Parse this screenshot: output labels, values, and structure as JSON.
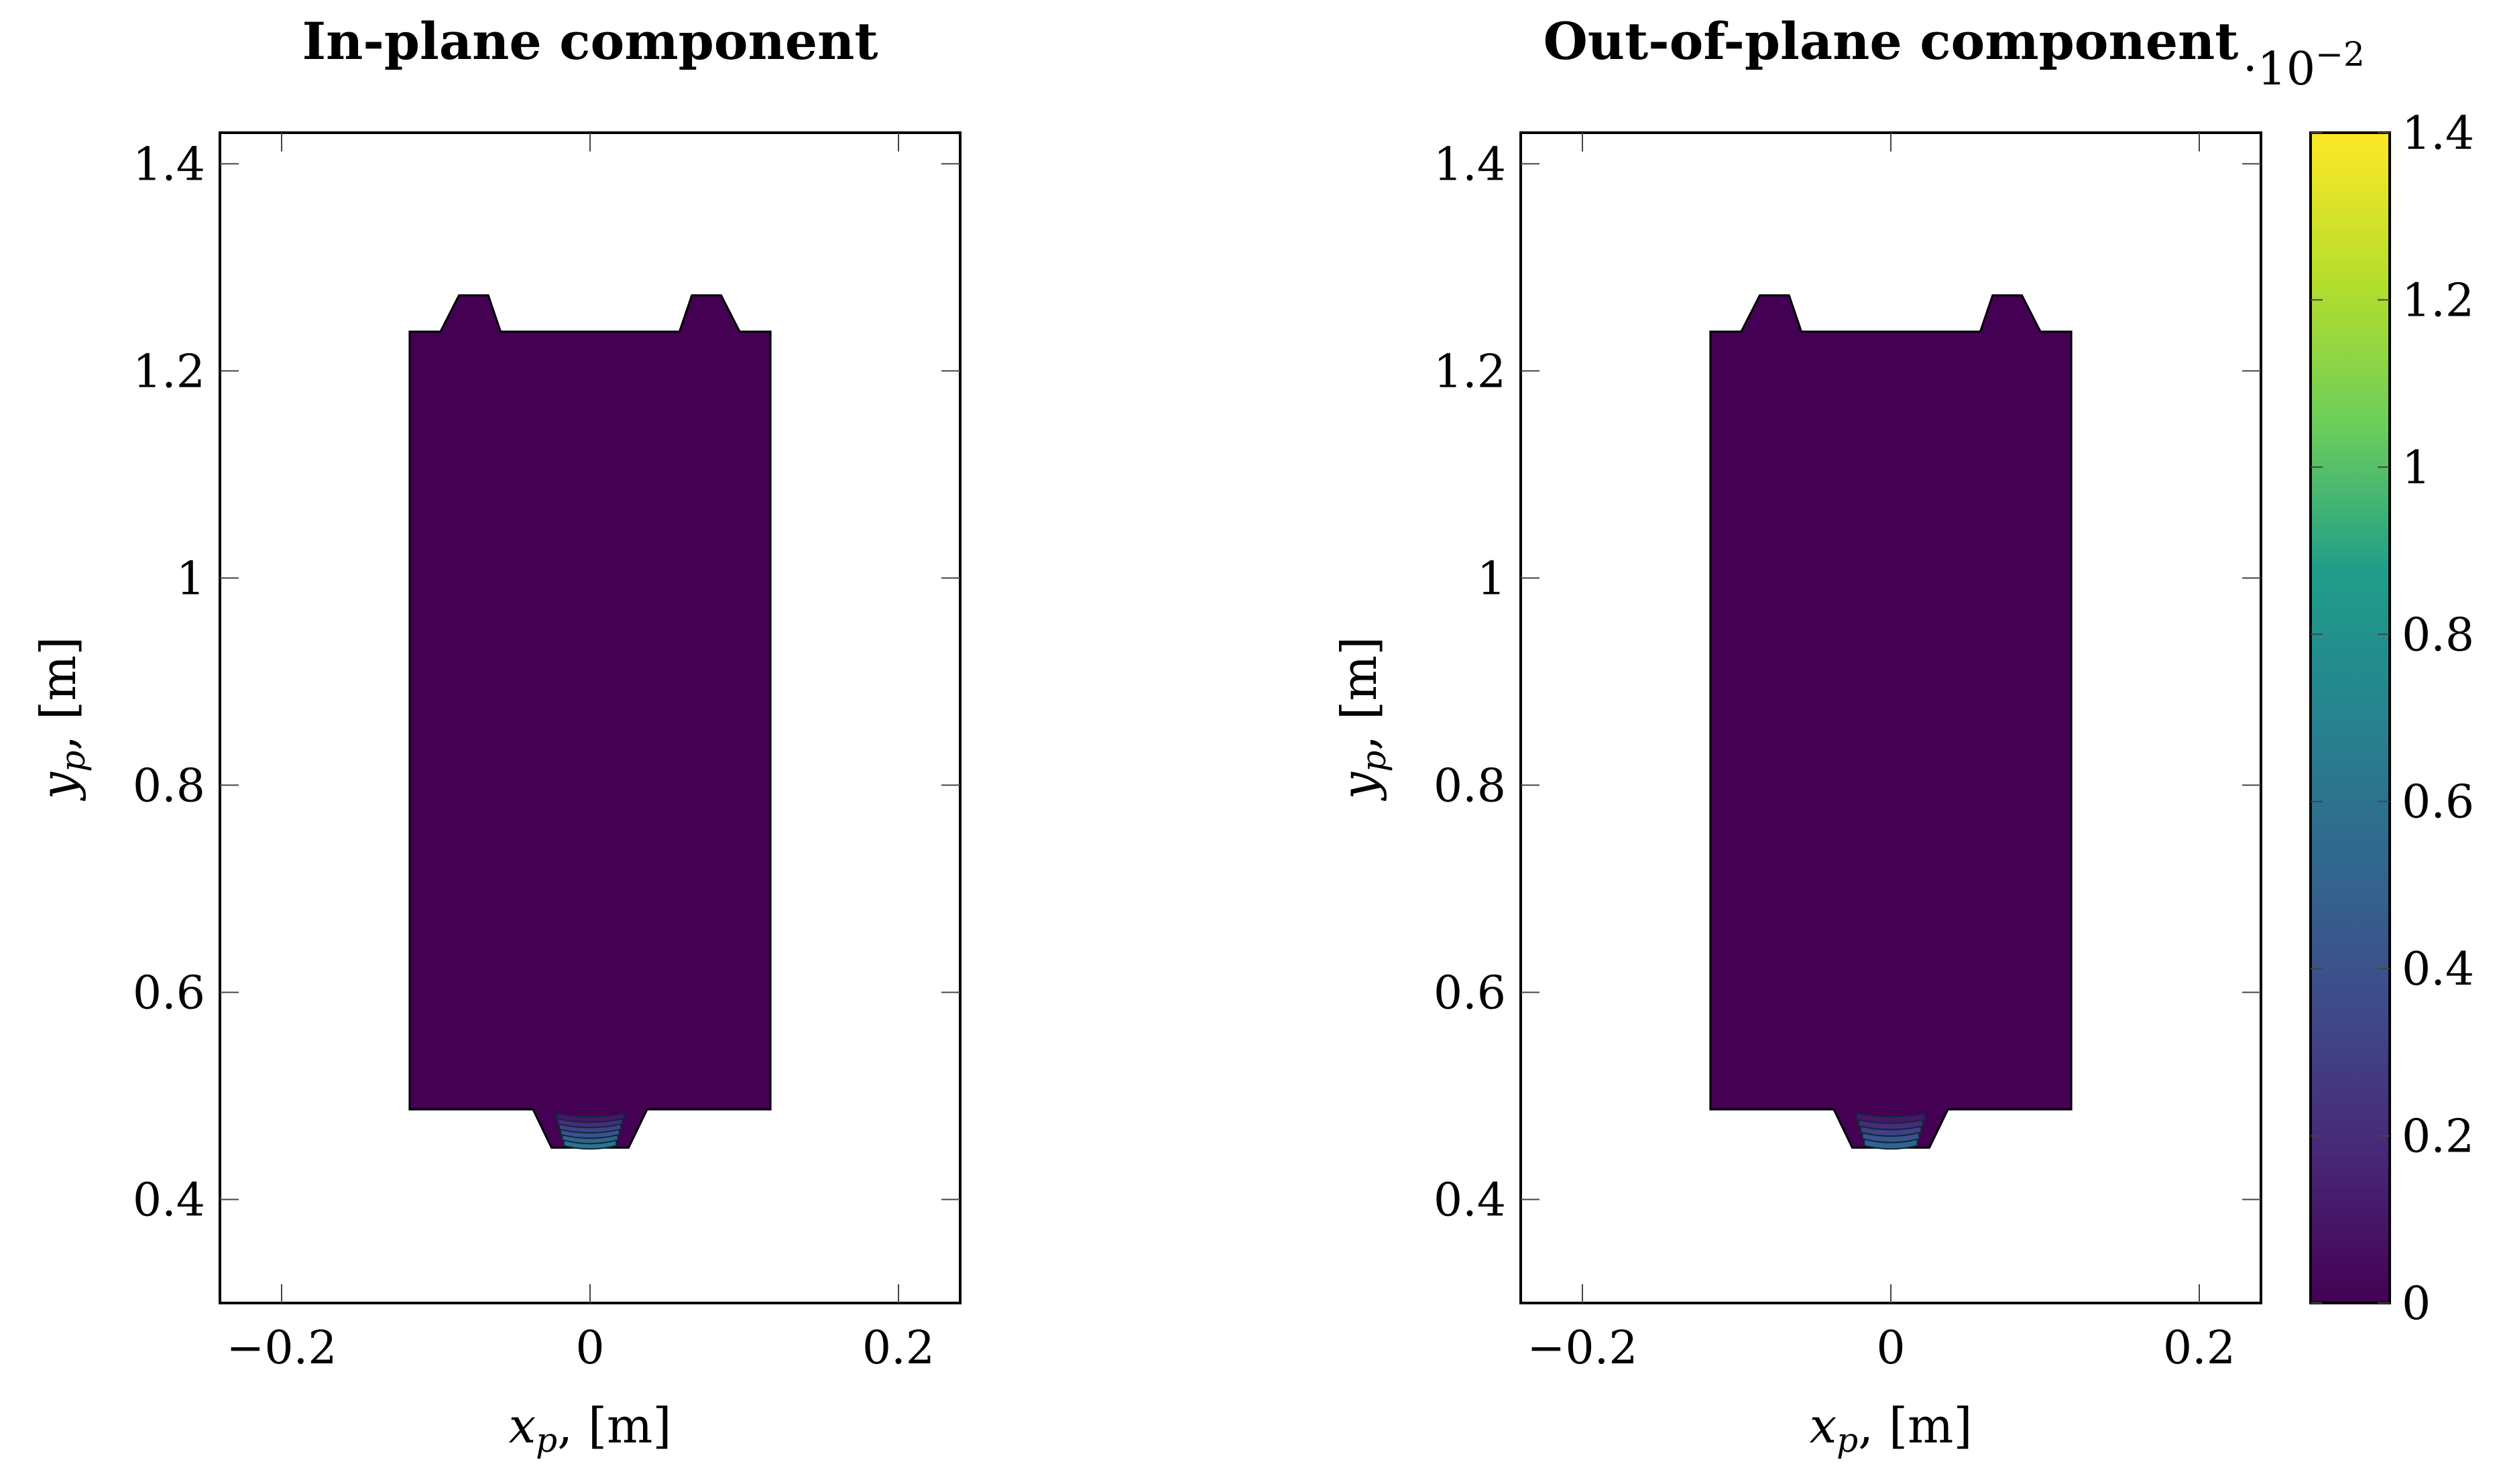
{
  "chart_data": [
    {
      "type": "heatmap",
      "title": "In-plane component",
      "xlabel_var": "x",
      "xlabel_sub": "p",
      "xlabel_unit": ", [m]",
      "ylabel_var": "y",
      "ylabel_sub": "p",
      "ylabel_unit": ", [m]",
      "xlim": [
        -0.24,
        0.24
      ],
      "ylim": [
        0.3,
        1.43
      ],
      "xticks": [
        -0.2,
        0,
        0.2
      ],
      "xtick_labels": [
        "−0.2",
        "0",
        "0.2"
      ],
      "yticks": [
        0.4,
        0.6,
        0.8,
        1.0,
        1.2,
        1.4
      ],
      "ytick_labels": [
        "0.4",
        "0.6",
        "0.8",
        "1",
        "1.2",
        "1.4"
      ],
      "body_outline": [
        [
          -0.117,
          0.487
        ],
        [
          -0.037,
          0.487
        ],
        [
          -0.025,
          0.45
        ],
        [
          0.025,
          0.45
        ],
        [
          0.037,
          0.487
        ],
        [
          0.117,
          0.487
        ],
        [
          0.117,
          1.238
        ],
        [
          0.097,
          1.238
        ],
        [
          0.085,
          1.273
        ],
        [
          0.066,
          1.273
        ],
        [
          0.058,
          1.238
        ],
        [
          -0.058,
          1.238
        ],
        [
          -0.066,
          1.273
        ],
        [
          -0.085,
          1.273
        ],
        [
          -0.097,
          1.238
        ],
        [
          -0.117,
          1.238
        ]
      ],
      "body_value": 0,
      "hotspot_levels": [
        0.1,
        0.2,
        0.3,
        0.4,
        0.5,
        0.6
      ]
    },
    {
      "type": "heatmap",
      "title": "Out-of-plane component",
      "xlabel_var": "x",
      "xlabel_sub": "p",
      "xlabel_unit": ", [m]",
      "ylabel_var": "y",
      "ylabel_sub": "p",
      "ylabel_unit": ", [m]",
      "xlim": [
        -0.24,
        0.24
      ],
      "ylim": [
        0.3,
        1.43
      ],
      "xticks": [
        -0.2,
        0,
        0.2
      ],
      "xtick_labels": [
        "−0.2",
        "0",
        "0.2"
      ],
      "yticks": [
        0.4,
        0.6,
        0.8,
        1.0,
        1.2,
        1.4
      ],
      "ytick_labels": [
        "0.4",
        "0.6",
        "0.8",
        "1",
        "1.2",
        "1.4"
      ],
      "body_outline": [
        [
          -0.117,
          0.487
        ],
        [
          -0.037,
          0.487
        ],
        [
          -0.025,
          0.45
        ],
        [
          0.025,
          0.45
        ],
        [
          0.037,
          0.487
        ],
        [
          0.117,
          0.487
        ],
        [
          0.117,
          1.238
        ],
        [
          0.097,
          1.238
        ],
        [
          0.085,
          1.273
        ],
        [
          0.066,
          1.273
        ],
        [
          0.058,
          1.238
        ],
        [
          -0.058,
          1.238
        ],
        [
          -0.066,
          1.273
        ],
        [
          -0.085,
          1.273
        ],
        [
          -0.097,
          1.238
        ],
        [
          -0.117,
          1.238
        ]
      ],
      "body_value": 0,
      "hotspot_levels": [
        0.1,
        0.2,
        0.3,
        0.4,
        0.5
      ]
    }
  ],
  "colorbar": {
    "colormap": "viridis",
    "range": [
      0,
      1.4
    ],
    "ticks": [
      0,
      0.2,
      0.4,
      0.6,
      0.8,
      1.0,
      1.2,
      1.4
    ],
    "tick_labels": [
      "0",
      "0.2",
      "0.4",
      "0.6",
      "0.8",
      "1",
      "1.2",
      "1.4"
    ],
    "multiplier_base": "·10",
    "multiplier_exp": "−2",
    "colors": [
      "#440154",
      "#482777",
      "#3f4a8a",
      "#31678e",
      "#26838f",
      "#1f9d8a",
      "#6cce5a",
      "#b6de2b",
      "#fee825"
    ]
  }
}
